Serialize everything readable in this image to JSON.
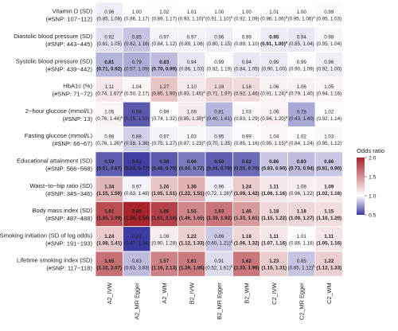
{
  "chart_data": {
    "type": "heatmap",
    "columns": [
      "A2_IVW",
      "A2_MR Egger",
      "A2_WM",
      "B2_IVW",
      "B2_MR Egger",
      "B2_WM",
      "C2_IVW",
      "C2_MR Egger",
      "C2_WM"
    ],
    "rows": [
      {
        "label1": "Vitamin D (SD)",
        "label2": "(#SNP: 107−112)",
        "cells": [
          {
            "or": 0.96,
            "ci": "(0.85, 1.08)",
            "bold": false
          },
          {
            "or": 1.0,
            "ci": "(0.86, 1.17)",
            "bold": false
          },
          {
            "or": 1.02,
            "ci": "(0.89, 1.17)",
            "bold": false
          },
          {
            "or": 1.01,
            "ci": "(0.93, 1.10)",
            "sup": "a",
            "bold": false
          },
          {
            "or": 1.0,
            "ci": "(0.91, 1.10)",
            "sup": "a",
            "bold": false
          },
          {
            "or": 1.0,
            "ci": "(0.92, 1.09)",
            "bold": false
          },
          {
            "or": 1.01,
            "ci": "(0.96, 1.06)",
            "sup": "a",
            "bold": false
          },
          {
            "or": 1.0,
            "ci": "(0.95, 1.06)",
            "sup": "a",
            "bold": false
          },
          {
            "or": 0.99,
            "ci": "(0.95, 1.03)",
            "bold": false
          }
        ]
      },
      {
        "label1": "Diastolic blood pressure (SD)",
        "label2": "(#SNP: 443−445)",
        "cells": [
          {
            "or": 0.92,
            "ci": "(0.81, 1.05)",
            "bold": false
          },
          {
            "or": 0.85,
            "ci": "(0.62, 1.16)",
            "bold": false
          },
          {
            "or": 0.97,
            "ci": "(0.84, 1.12)",
            "bold": false
          },
          {
            "or": 0.97,
            "ci": "(0.89, 1.06)",
            "bold": false
          },
          {
            "or": 0.96,
            "ci": "(0.80, 1.15)",
            "bold": false
          },
          {
            "or": 0.99,
            "ci": "(0.89, 1.10)",
            "bold": false
          },
          {
            "or": 0.95,
            "ci": "(0.91, 1.00)",
            "sup": "a",
            "bold": true
          },
          {
            "or": 0.94,
            "ci": "(0.85, 1.04)",
            "bold": false
          },
          {
            "or": 0.98,
            "ci": "(0.95, 1.04)",
            "bold": false
          }
        ]
      },
      {
        "label1": "Systolic blood pressure (SD)",
        "label2": "(#SNP: 439−442)",
        "cells": [
          {
            "or": 0.81,
            "ci": "(0.71, 0.92)",
            "bold": true
          },
          {
            "or": 0.79,
            "ci": "(0.57, 1.09)",
            "bold": false
          },
          {
            "or": 0.83,
            "ci": "(0.70, 0.99)",
            "bold": true
          },
          {
            "or": 0.94,
            "ci": "(0.86, 1.03)",
            "bold": false
          },
          {
            "or": 0.99,
            "ci": "(0.82, 1.19)",
            "bold": false
          },
          {
            "or": 0.94,
            "ci": "(0.84, 1.05)",
            "bold": false
          },
          {
            "or": 0.95,
            "ci": "(0.90, 1.00)",
            "bold": false
          },
          {
            "or": 0.99,
            "ci": "(0.90, 1.09)",
            "bold": false
          },
          {
            "or": 0.96,
            "ci": "(0.92, 1.00)",
            "bold": false
          }
        ]
      },
      {
        "label1": "HbA1c (%)",
        "label2": "(#SNP: 71−72)",
        "cells": [
          {
            "or": 1.11,
            "ci": "(0.74, 1.67)",
            "sup": "a",
            "bold": false
          },
          {
            "or": 1.04,
            "ci": "(0.50, 2.17)",
            "bold": false
          },
          {
            "or": 1.27,
            "ci": "(0.85, 1.90)",
            "bold": false
          },
          {
            "or": 1.1,
            "ci": "(0.83, 1.45)",
            "sup": "a",
            "bold": false
          },
          {
            "or": 1.18,
            "ci": "(0.71, 1.97)",
            "bold": false
          },
          {
            "or": 1.16,
            "ci": "(0.92, 1.46)",
            "bold": false
          },
          {
            "or": 1.06,
            "ci": "(0.91, 1.24)",
            "sup": "a",
            "bold": false
          },
          {
            "or": 1.06,
            "ci": "(0.79, 1.40)",
            "bold": false
          },
          {
            "or": 1.05,
            "ci": "(0.94, 1.16)",
            "bold": false
          }
        ]
      },
      {
        "label1": "2−hour glucose (mmol/L)",
        "label2": "(#SNP: 13)",
        "cells": [
          {
            "or": 1.05,
            "ci": "(0.76, 1.44)",
            "sup": "a",
            "bold": false
          },
          {
            "or": 0.58,
            "ci": "(0.25, 1.33)",
            "bold": false
          },
          {
            "or": 0.99,
            "ci": "(0.74, 1.32)",
            "bold": false
          },
          {
            "or": 1.09,
            "ci": "(0.85, 1.39)",
            "sup": "a",
            "bold": false
          },
          {
            "or": 0.81,
            "ci": "(0.40, 1.61)",
            "bold": false
          },
          {
            "or": 1.03,
            "ci": "(0.83, 1.29)",
            "bold": false
          },
          {
            "or": 1.06,
            "ci": "(0.94, 1.20)",
            "sup": "a",
            "bold": false
          },
          {
            "or": 0.78,
            "ci": "(0.43, 1.40)",
            "bold": false
          },
          {
            "or": 1.02,
            "ci": "(0.92, 1.14)",
            "bold": false
          }
        ]
      },
      {
        "label1": "Fasting glucose (mmol/L)",
        "label2": "(#SNP: 66−67)",
        "cells": [
          {
            "or": 0.98,
            "ci": "(0.76, 1.26)",
            "sup": "a",
            "bold": false
          },
          {
            "or": 0.88,
            "ci": "(0.56, 1.36)",
            "bold": false
          },
          {
            "or": 0.97,
            "ci": "(0.75, 1.27)",
            "bold": false
          },
          {
            "or": 1.03,
            "ci": "(0.87, 1.23)",
            "sup": "a",
            "bold": false
          },
          {
            "or": 0.95,
            "ci": "(0.70, 1.35)",
            "bold": false
          },
          {
            "or": 0.99,
            "ci": "(0.85, 1.16)",
            "bold": false
          },
          {
            "or": 1.04,
            "ci": "(0.95, 1.15)",
            "sup": "a",
            "bold": false
          },
          {
            "or": 1.02,
            "ci": "(0.84, 1.24)",
            "bold": false
          },
          {
            "or": 1.03,
            "ci": "(0.95, 1.12)",
            "bold": false
          }
        ]
      },
      {
        "label1": "Educational attainment (SD)",
        "label2": "(#SNP: 566−568)",
        "cells": [
          {
            "or": 0.59,
            "ci": "(0.51, 0.67)",
            "bold": true
          },
          {
            "or": 0.51,
            "ci": "(0.33, 0.77)",
            "bold": true
          },
          {
            "or": 0.58,
            "ci": "(0.48, 0.70)",
            "bold": true
          },
          {
            "or": 0.66,
            "ci": "(0.60, 0.72)",
            "bold": true
          },
          {
            "or": 0.59,
            "ci": "(0.44, 0.78)",
            "bold": true
          },
          {
            "or": 0.62,
            "ci": "(0.55, 0.70)",
            "bold": true
          },
          {
            "or": 0.86,
            "ci": "(0.83, 0.90)",
            "bold": true
          },
          {
            "or": 0.83,
            "ci": "(0.73, 0.94)",
            "bold": true
          },
          {
            "or": 0.86,
            "ci": "(0.81, 0.90)",
            "bold": true
          }
        ]
      },
      {
        "label1": "Waist−to−hip ratio (SD)",
        "label2": "(#SNP: 345−346)",
        "cells": [
          {
            "or": 1.34,
            "ci": "(1.15, 1.56)",
            "bold": true
          },
          {
            "or": 0.97,
            "ci": "(0.63, 1.48)",
            "bold": false
          },
          {
            "or": 1.26,
            "ci": "(1.05, 1.51)",
            "bold": true
          },
          {
            "or": 1.36,
            "ci": "(1.22, 1.51)",
            "bold": true
          },
          {
            "or": 0.96,
            "ci": "(0.72, 1.28)",
            "sup": "b",
            "bold": false
          },
          {
            "or": 1.24,
            "ci": "(1.09, 1.42)",
            "bold": true
          },
          {
            "or": 1.11,
            "ci": "(1.06, 1.16)",
            "bold": true
          },
          {
            "or": 1.08,
            "ci": "(0.96, 1.22)",
            "bold": false
          },
          {
            "or": 1.09,
            "ci": "(1.02, 1.16)",
            "bold": true
          }
        ]
      },
      {
        "label1": "Body mass index (SD)",
        "label2": "(#SNP: 487−488)",
        "cells": [
          {
            "or": 1.81,
            "ci": "(1.65, 1.99)",
            "bold": true
          },
          {
            "or": 2.0,
            "ci": "(1.58, 2.54)",
            "bold": true
          },
          {
            "or": 1.86,
            "ci": "(1.61, 2.16)",
            "bold": true
          },
          {
            "or": 1.55,
            "ci": "(1.46, 1.65)",
            "bold": true
          },
          {
            "or": 1.63,
            "ci": "(1.39, 1.92)",
            "bold": true
          },
          {
            "or": 1.46,
            "ci": "(1.33, 1.61)",
            "bold": true
          },
          {
            "or": 1.18,
            "ci": "(1.15, 1.22)",
            "bold": true
          },
          {
            "or": 1.18,
            "ci": "(1.09, 1.27)",
            "bold": true
          },
          {
            "or": 1.15,
            "ci": "(1.10, 1.20)",
            "bold": true
          }
        ]
      },
      {
        "label1": "Smoking initiation (SD of log odds)",
        "label2": "(#SNP: 191−193)",
        "cells": [
          {
            "or": 1.24,
            "ci": "(1.08, 1.41)",
            "bold": true
          },
          {
            "or": 0.47,
            "ci": "(0.47, 1.34)",
            "bold": false
          },
          {
            "or": 1.08,
            "ci": "(0.90, 1.28)",
            "bold": false
          },
          {
            "or": 1.22,
            "ci": "(1.12, 1.33)",
            "bold": true
          },
          {
            "or": 0.86,
            "ci": "(0.60, 1.21)",
            "sup": "b",
            "bold": false
          },
          {
            "or": 1.18,
            "ci": "(1.06, 1.32)",
            "bold": true
          },
          {
            "or": 1.11,
            "ci": "(1.07, 1.16)",
            "bold": true
          },
          {
            "or": 1.01,
            "ci": "(0.86, 1.18)",
            "bold": false
          },
          {
            "or": 1.11,
            "ci": "(1.05, 1.16)",
            "bold": true
          }
        ]
      },
      {
        "label1": "Lifetime smoking index (SD)",
        "label2": "(#SNP: 117−118)",
        "cells": [
          {
            "or": 1.65,
            "ci": "(1.32, 2.07)",
            "bold": true
          },
          {
            "or": 0.83,
            "ci": "(0.63, 3.83)",
            "bold": false
          },
          {
            "or": 1.57,
            "ci": "(1.16, 2.13)",
            "bold": true
          },
          {
            "or": 1.61,
            "ci": "(1.39, 1.86)",
            "bold": true
          },
          {
            "or": 0.91,
            "ci": "(0.52, 1.61)",
            "sup": "b",
            "bold": false
          },
          {
            "or": 1.62,
            "ci": "(1.33, 1.96)",
            "bold": true
          },
          {
            "or": 1.23,
            "ci": "(1.15, 1.31)",
            "bold": true
          },
          {
            "or": 0.85,
            "ci": "(0.65, 1.12)",
            "sup": "b",
            "bold": false
          },
          {
            "or": 1.22,
            "ci": "(1.12, 1.33)",
            "bold": true
          }
        ]
      }
    ],
    "legend": {
      "title": "Odds ratio",
      "ticks": [
        2.0,
        1.5,
        1.0,
        0.5
      ],
      "range": [
        0.5,
        2.0
      ],
      "placement": "right"
    },
    "colors": {
      "high": "#a8232a",
      "mid": "#ffffff",
      "low": "#3d3ba0"
    }
  }
}
